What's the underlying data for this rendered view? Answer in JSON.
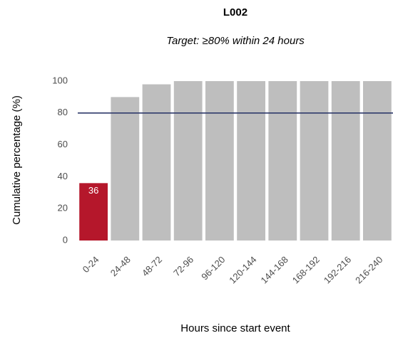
{
  "chart_data": {
    "type": "bar",
    "title": "L002",
    "subtitle": "Target: ≥80% within 24 hours",
    "x_label": "Hours since start event",
    "y_label": "Cumulative percentage (%)",
    "categories": [
      "0-24",
      "24-48",
      "48-72",
      "72-96",
      "96-120",
      "120-144",
      "144-168",
      "168-192",
      "192-216",
      "216-240"
    ],
    "values": [
      36,
      90,
      98,
      100,
      100,
      100,
      100,
      100,
      100,
      100
    ],
    "colors": [
      "#b5172b",
      "#bebebe",
      "#bebebe",
      "#bebebe",
      "#bebebe",
      "#bebebe",
      "#bebebe",
      "#bebebe",
      "#bebebe",
      "#bebebe"
    ],
    "value_label_categories": [
      "0-24"
    ],
    "reference_line": {
      "value": 80,
      "color": "#2f3a6b"
    },
    "ylim": [
      -5,
      105
    ],
    "yticks": [
      0,
      20,
      40,
      60,
      80,
      100
    ],
    "grid": false
  }
}
